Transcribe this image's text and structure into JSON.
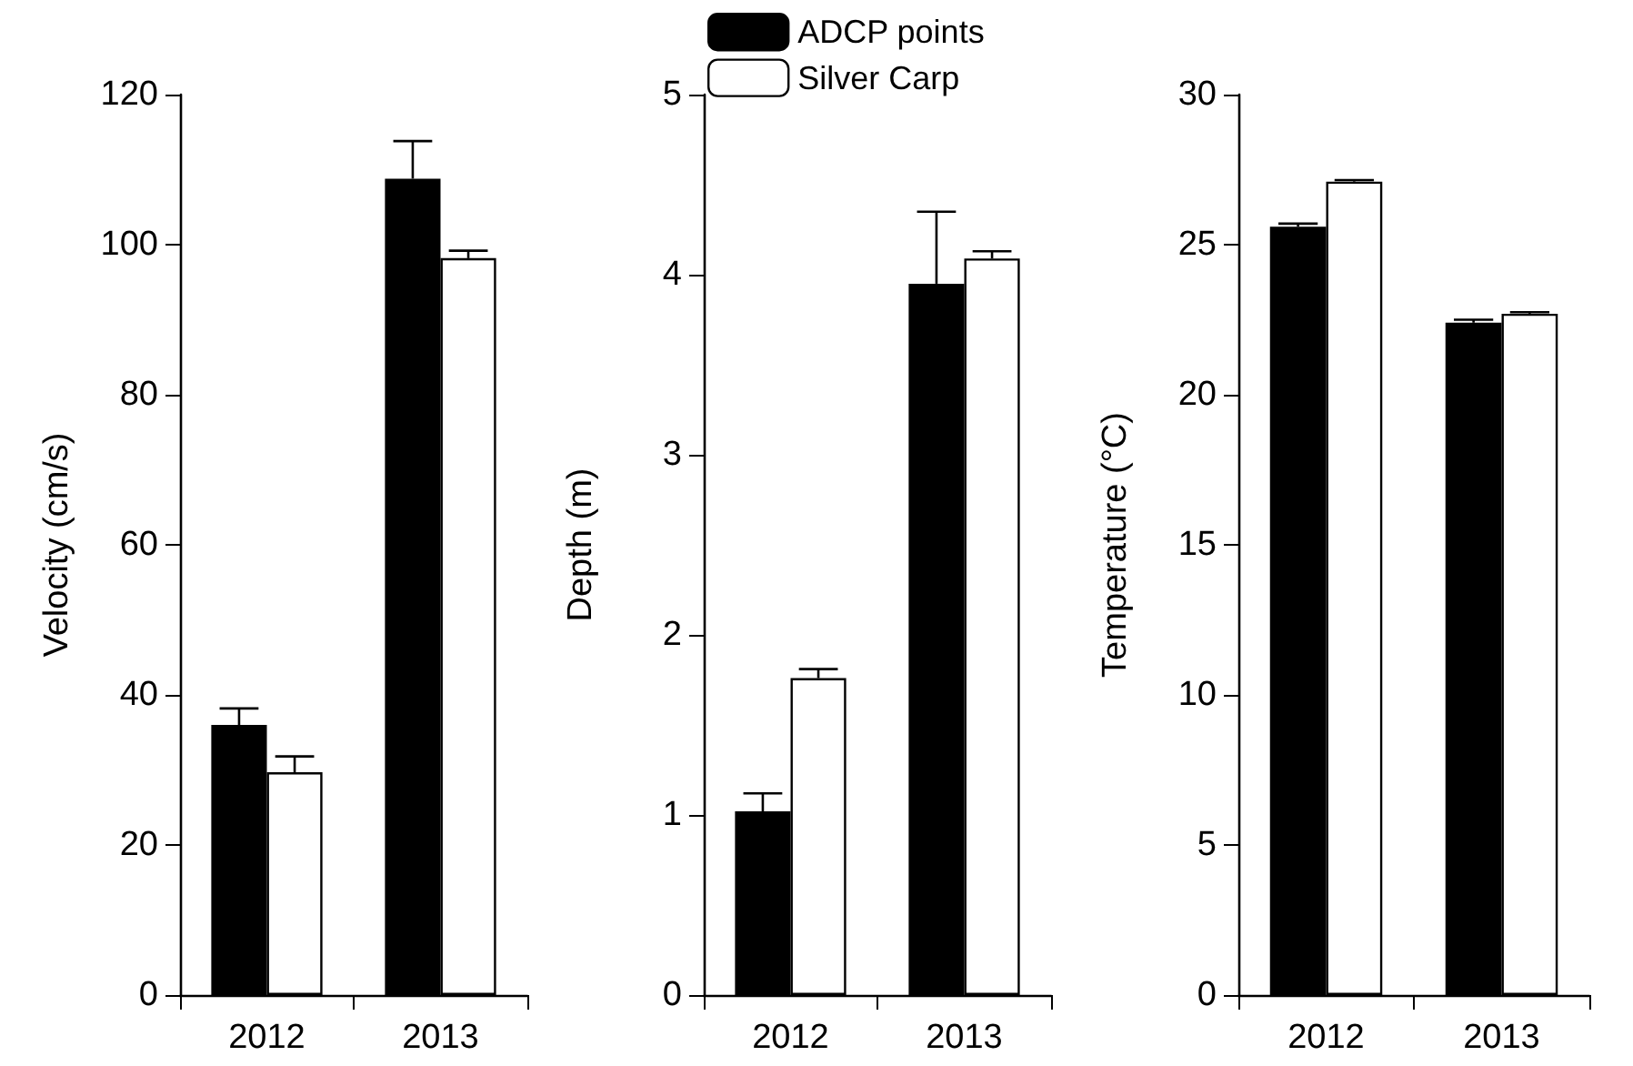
{
  "chart_data": [
    {
      "type": "bar",
      "ylabel": "Velocity (cm/s)",
      "categories": [
        "2012",
        "2013"
      ],
      "ylim": [
        0,
        120
      ],
      "yticks": [
        0,
        20,
        40,
        60,
        80,
        100,
        120
      ],
      "legend": false,
      "grid": false,
      "series": [
        {
          "color": "#000000",
          "values": [
            36,
            108.8
          ],
          "errors": [
            [
              36,
              38.2
            ],
            [
              108.8,
              113.8
            ]
          ]
        },
        {
          "color": "#ffffff",
          "values": [
            29.7,
            98.2
          ],
          "errors": [
            [
              29.7,
              31.8
            ],
            [
              98.2,
              99.2
            ]
          ]
        }
      ]
    },
    {
      "type": "bar",
      "ylabel": "Depth (m)",
      "categories": [
        "2012",
        "2013"
      ],
      "ylim": [
        0,
        5
      ],
      "yticks": [
        0,
        1,
        2,
        3,
        4,
        5
      ],
      "legend": "top",
      "grid": false,
      "series": [
        {
          "name": "ADCP points",
          "color": "#000000",
          "values": [
            1.02,
            3.95
          ],
          "errors": [
            [
              1.02,
              1.12
            ],
            [
              3.95,
              4.35
            ]
          ]
        },
        {
          "name": "Silver Carp",
          "color": "#ffffff",
          "values": [
            1.76,
            4.09
          ],
          "errors": [
            [
              1.76,
              1.81
            ],
            [
              4.09,
              4.13
            ]
          ]
        }
      ]
    },
    {
      "type": "bar",
      "ylabel": "Temperature (°C)",
      "categories": [
        "2012",
        "2013"
      ],
      "ylim": [
        0,
        30
      ],
      "yticks": [
        0,
        5,
        10,
        15,
        20,
        25,
        30
      ],
      "legend": false,
      "grid": false,
      "series": [
        {
          "color": "#000000",
          "values": [
            25.6,
            22.4
          ],
          "errors": [
            [
              25.6,
              25.7
            ],
            [
              22.4,
              22.5
            ]
          ]
        },
        {
          "color": "#ffffff",
          "values": [
            27.1,
            22.7
          ],
          "errors": [
            [
              27.1,
              27.15
            ],
            [
              22.7,
              22.75
            ]
          ]
        }
      ]
    }
  ]
}
